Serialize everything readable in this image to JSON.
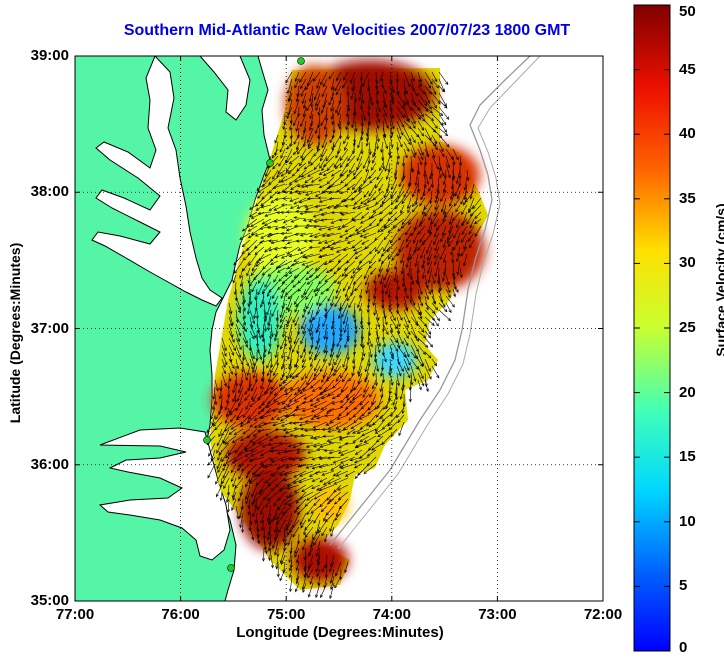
{
  "title": "Southern Mid-Atlantic Raw Velocities 2007/07/23 1800 GMT",
  "xaxis": {
    "label": "Longitude (Degrees:Minutes)",
    "ticks": [
      "77:00",
      "76:00",
      "75:00",
      "74:00",
      "73:00",
      "72:00"
    ],
    "values": [
      -77,
      -76,
      -75,
      -74,
      -73,
      -72
    ],
    "range": [
      -77,
      -72
    ]
  },
  "yaxis": {
    "label": "Latitude (Degrees:Minutes)",
    "ticks": [
      "39:00",
      "38:00",
      "37:00",
      "36:00",
      "35:00"
    ],
    "values": [
      39,
      38,
      37,
      36,
      35
    ],
    "range": [
      35,
      39
    ]
  },
  "colorbar": {
    "label": "Surface Velocity (cm/s)",
    "ticks": [
      "50",
      "45",
      "40",
      "35",
      "30",
      "25",
      "20",
      "15",
      "10",
      "5",
      "0"
    ],
    "values": [
      50,
      45,
      40,
      35,
      30,
      25,
      20,
      15,
      10,
      5,
      0
    ],
    "range": [
      0,
      50
    ],
    "colormap": "jet"
  },
  "colors": {
    "land": "#55f5a8",
    "water": "#ffffff",
    "coastline": "#000000",
    "bathymetry": "#999999",
    "title": "#0000e8",
    "station_marker": "#22cc22"
  },
  "grid": "dotted"
}
